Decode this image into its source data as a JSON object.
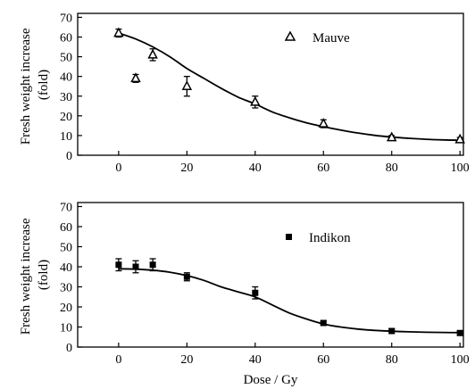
{
  "chart_data": [
    {
      "type": "scatter",
      "title": "",
      "xlabel": "",
      "ylabel": "Fresh weight increase (fold)",
      "ylabel_lines": [
        "Fresh weight increase",
        "(fold)"
      ],
      "xlim": [
        -12,
        101
      ],
      "ylim": [
        0,
        72
      ],
      "xticks": [
        0,
        20,
        40,
        60,
        80,
        100
      ],
      "yticks": [
        0,
        10,
        20,
        30,
        40,
        50,
        60,
        70
      ],
      "grid": false,
      "legend_position": "top-right",
      "series": [
        {
          "name": "Mauve",
          "marker": "open-triangle",
          "x": [
            0,
            5,
            10,
            20,
            40,
            60,
            80,
            100
          ],
          "y": [
            62,
            39,
            51,
            35,
            27,
            16,
            9,
            8
          ],
          "error": [
            2,
            2,
            3,
            5,
            3,
            2,
            1,
            1
          ]
        }
      ],
      "fit_curve": {
        "x": [
          0,
          5,
          10,
          15,
          20,
          25,
          30,
          35,
          40,
          45,
          50,
          55,
          60,
          65,
          70,
          75,
          80,
          85,
          90,
          95,
          100
        ],
        "y": [
          62,
          59,
          55,
          50,
          44,
          39,
          34,
          29.5,
          26,
          22,
          19,
          16.5,
          14.5,
          12.8,
          11.3,
          10.1,
          9.2,
          8.6,
          8.1,
          7.8,
          7.6
        ]
      }
    },
    {
      "type": "scatter",
      "title": "",
      "xlabel": "Dose / Gy",
      "ylabel": "Fresh weight increase (fold)",
      "ylabel_lines": [
        "Fresh weight increase",
        "(fold)"
      ],
      "xlim": [
        -12,
        101
      ],
      "ylim": [
        0,
        72
      ],
      "xticks": [
        0,
        20,
        40,
        60,
        80,
        100
      ],
      "yticks": [
        0,
        10,
        20,
        30,
        40,
        50,
        60,
        70
      ],
      "grid": false,
      "legend_position": "top-right",
      "series": [
        {
          "name": "Indikon",
          "marker": "filled-square",
          "x": [
            0,
            5,
            10,
            20,
            40,
            60,
            80,
            100
          ],
          "y": [
            41,
            40,
            41,
            35,
            27,
            12,
            8,
            7
          ],
          "error": [
            3,
            3,
            3,
            2,
            3,
            1,
            1,
            1
          ]
        }
      ],
      "fit_curve": {
        "x": [
          0,
          5,
          10,
          15,
          20,
          25,
          30,
          35,
          40,
          45,
          50,
          55,
          60,
          65,
          70,
          75,
          80,
          85,
          90,
          95,
          100
        ],
        "y": [
          39,
          38.8,
          38.3,
          37.3,
          35.6,
          33.2,
          30,
          27.5,
          25,
          21,
          17,
          14,
          11.5,
          10,
          9,
          8.3,
          7.9,
          7.6,
          7.4,
          7.3,
          7.2
        ]
      }
    }
  ]
}
